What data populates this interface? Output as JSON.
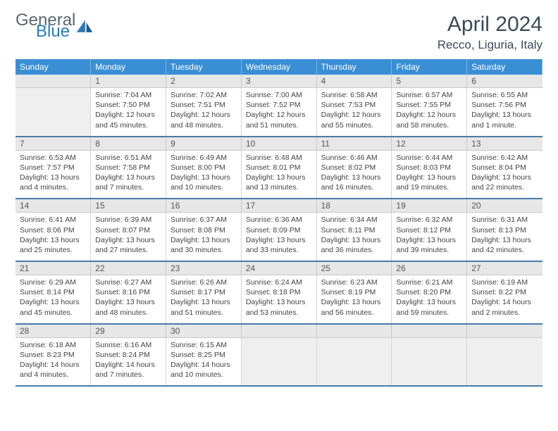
{
  "brand": {
    "general": "General",
    "blue": "Blue"
  },
  "title": "April 2024",
  "location": "Recco, Liguria, Italy",
  "colors": {
    "header_bg": "#3a8fd4",
    "header_text": "#ffffff",
    "daynum_bg": "#e7e7e7",
    "week_divider": "#4a7aa8",
    "cell_border": "#d6d6d6",
    "title_color": "#3a4a5a",
    "logo_gray": "#5a6770",
    "logo_blue": "#2a7ab8"
  },
  "weekdays": [
    "Sunday",
    "Monday",
    "Tuesday",
    "Wednesday",
    "Thursday",
    "Friday",
    "Saturday"
  ],
  "weeks": [
    [
      null,
      {
        "n": "1",
        "sunrise": "Sunrise: 7:04 AM",
        "sunset": "Sunset: 7:50 PM",
        "d1": "Daylight: 12 hours",
        "d2": "and 45 minutes."
      },
      {
        "n": "2",
        "sunrise": "Sunrise: 7:02 AM",
        "sunset": "Sunset: 7:51 PM",
        "d1": "Daylight: 12 hours",
        "d2": "and 48 minutes."
      },
      {
        "n": "3",
        "sunrise": "Sunrise: 7:00 AM",
        "sunset": "Sunset: 7:52 PM",
        "d1": "Daylight: 12 hours",
        "d2": "and 51 minutes."
      },
      {
        "n": "4",
        "sunrise": "Sunrise: 6:58 AM",
        "sunset": "Sunset: 7:53 PM",
        "d1": "Daylight: 12 hours",
        "d2": "and 55 minutes."
      },
      {
        "n": "5",
        "sunrise": "Sunrise: 6:57 AM",
        "sunset": "Sunset: 7:55 PM",
        "d1": "Daylight: 12 hours",
        "d2": "and 58 minutes."
      },
      {
        "n": "6",
        "sunrise": "Sunrise: 6:55 AM",
        "sunset": "Sunset: 7:56 PM",
        "d1": "Daylight: 13 hours",
        "d2": "and 1 minute."
      }
    ],
    [
      {
        "n": "7",
        "sunrise": "Sunrise: 6:53 AM",
        "sunset": "Sunset: 7:57 PM",
        "d1": "Daylight: 13 hours",
        "d2": "and 4 minutes."
      },
      {
        "n": "8",
        "sunrise": "Sunrise: 6:51 AM",
        "sunset": "Sunset: 7:58 PM",
        "d1": "Daylight: 13 hours",
        "d2": "and 7 minutes."
      },
      {
        "n": "9",
        "sunrise": "Sunrise: 6:49 AM",
        "sunset": "Sunset: 8:00 PM",
        "d1": "Daylight: 13 hours",
        "d2": "and 10 minutes."
      },
      {
        "n": "10",
        "sunrise": "Sunrise: 6:48 AM",
        "sunset": "Sunset: 8:01 PM",
        "d1": "Daylight: 13 hours",
        "d2": "and 13 minutes."
      },
      {
        "n": "11",
        "sunrise": "Sunrise: 6:46 AM",
        "sunset": "Sunset: 8:02 PM",
        "d1": "Daylight: 13 hours",
        "d2": "and 16 minutes."
      },
      {
        "n": "12",
        "sunrise": "Sunrise: 6:44 AM",
        "sunset": "Sunset: 8:03 PM",
        "d1": "Daylight: 13 hours",
        "d2": "and 19 minutes."
      },
      {
        "n": "13",
        "sunrise": "Sunrise: 6:42 AM",
        "sunset": "Sunset: 8:04 PM",
        "d1": "Daylight: 13 hours",
        "d2": "and 22 minutes."
      }
    ],
    [
      {
        "n": "14",
        "sunrise": "Sunrise: 6:41 AM",
        "sunset": "Sunset: 8:06 PM",
        "d1": "Daylight: 13 hours",
        "d2": "and 25 minutes."
      },
      {
        "n": "15",
        "sunrise": "Sunrise: 6:39 AM",
        "sunset": "Sunset: 8:07 PM",
        "d1": "Daylight: 13 hours",
        "d2": "and 27 minutes."
      },
      {
        "n": "16",
        "sunrise": "Sunrise: 6:37 AM",
        "sunset": "Sunset: 8:08 PM",
        "d1": "Daylight: 13 hours",
        "d2": "and 30 minutes."
      },
      {
        "n": "17",
        "sunrise": "Sunrise: 6:36 AM",
        "sunset": "Sunset: 8:09 PM",
        "d1": "Daylight: 13 hours",
        "d2": "and 33 minutes."
      },
      {
        "n": "18",
        "sunrise": "Sunrise: 6:34 AM",
        "sunset": "Sunset: 8:11 PM",
        "d1": "Daylight: 13 hours",
        "d2": "and 36 minutes."
      },
      {
        "n": "19",
        "sunrise": "Sunrise: 6:32 AM",
        "sunset": "Sunset: 8:12 PM",
        "d1": "Daylight: 13 hours",
        "d2": "and 39 minutes."
      },
      {
        "n": "20",
        "sunrise": "Sunrise: 6:31 AM",
        "sunset": "Sunset: 8:13 PM",
        "d1": "Daylight: 13 hours",
        "d2": "and 42 minutes."
      }
    ],
    [
      {
        "n": "21",
        "sunrise": "Sunrise: 6:29 AM",
        "sunset": "Sunset: 8:14 PM",
        "d1": "Daylight: 13 hours",
        "d2": "and 45 minutes."
      },
      {
        "n": "22",
        "sunrise": "Sunrise: 6:27 AM",
        "sunset": "Sunset: 8:16 PM",
        "d1": "Daylight: 13 hours",
        "d2": "and 48 minutes."
      },
      {
        "n": "23",
        "sunrise": "Sunrise: 6:26 AM",
        "sunset": "Sunset: 8:17 PM",
        "d1": "Daylight: 13 hours",
        "d2": "and 51 minutes."
      },
      {
        "n": "24",
        "sunrise": "Sunrise: 6:24 AM",
        "sunset": "Sunset: 8:18 PM",
        "d1": "Daylight: 13 hours",
        "d2": "and 53 minutes."
      },
      {
        "n": "25",
        "sunrise": "Sunrise: 6:23 AM",
        "sunset": "Sunset: 8:19 PM",
        "d1": "Daylight: 13 hours",
        "d2": "and 56 minutes."
      },
      {
        "n": "26",
        "sunrise": "Sunrise: 6:21 AM",
        "sunset": "Sunset: 8:20 PM",
        "d1": "Daylight: 13 hours",
        "d2": "and 59 minutes."
      },
      {
        "n": "27",
        "sunrise": "Sunrise: 6:19 AM",
        "sunset": "Sunset: 8:22 PM",
        "d1": "Daylight: 14 hours",
        "d2": "and 2 minutes."
      }
    ],
    [
      {
        "n": "28",
        "sunrise": "Sunrise: 6:18 AM",
        "sunset": "Sunset: 8:23 PM",
        "d1": "Daylight: 14 hours",
        "d2": "and 4 minutes."
      },
      {
        "n": "29",
        "sunrise": "Sunrise: 6:16 AM",
        "sunset": "Sunset: 8:24 PM",
        "d1": "Daylight: 14 hours",
        "d2": "and 7 minutes."
      },
      {
        "n": "30",
        "sunrise": "Sunrise: 6:15 AM",
        "sunset": "Sunset: 8:25 PM",
        "d1": "Daylight: 14 hours",
        "d2": "and 10 minutes."
      },
      null,
      null,
      null,
      null
    ]
  ]
}
